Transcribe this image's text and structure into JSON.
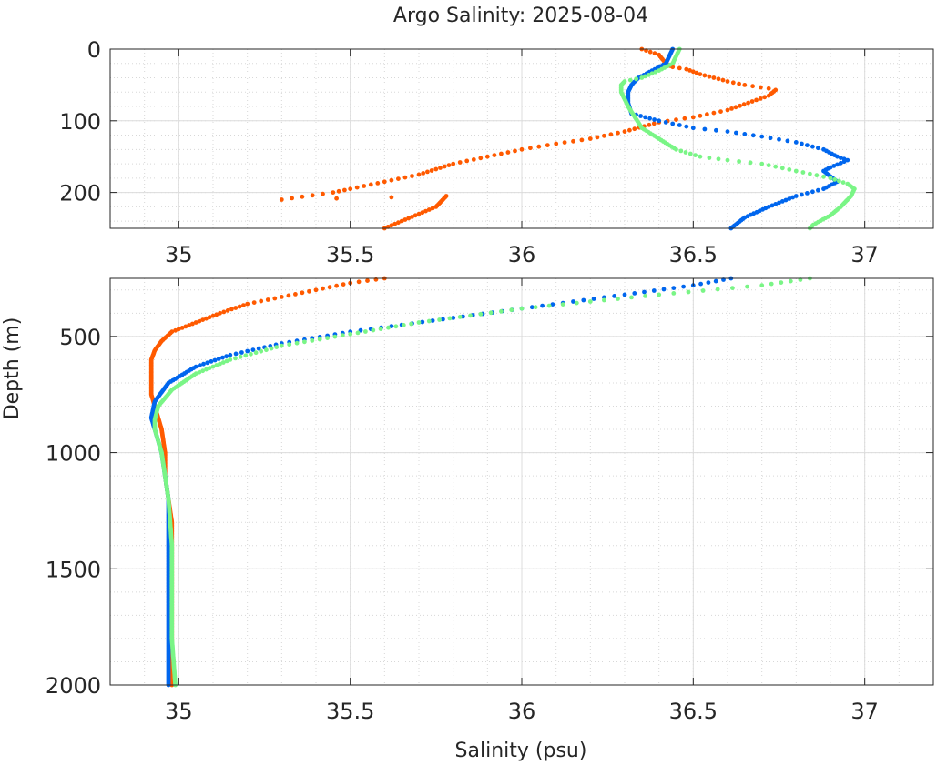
{
  "chart_data": {
    "type": "scatter",
    "title": "Argo Salinity: 2025-08-04",
    "xlabel": "Salinity (psu)",
    "ylabel": "Depth (m)",
    "panels": [
      {
        "name": "upper",
        "xlim": [
          34.8,
          37.2
        ],
        "ylim": [
          250,
          0
        ],
        "xticks": [
          35,
          35.5,
          36,
          36.5,
          37
        ],
        "xtick_labels": [
          "35",
          "35.5",
          "36",
          "36.5",
          "37"
        ],
        "yticks": [
          0,
          100,
          200
        ],
        "ytick_labels": [
          "0",
          "100",
          "200"
        ],
        "grid": true
      },
      {
        "name": "lower",
        "xlim": [
          34.8,
          37.2
        ],
        "ylim": [
          2000,
          250
        ],
        "xticks": [
          35,
          35.5,
          36,
          36.5,
          37
        ],
        "xtick_labels": [
          "35",
          "35.5",
          "36",
          "36.5",
          "37"
        ],
        "yticks": [
          500,
          1000,
          1500,
          2000
        ],
        "ytick_labels": [
          "500",
          "1000",
          "1500",
          "2000"
        ],
        "grid": true
      }
    ],
    "series": [
      {
        "name": "profile-orange",
        "color": "#ff5a00",
        "points": [
          [
            36.35,
            0
          ],
          [
            36.4,
            8
          ],
          [
            36.42,
            20
          ],
          [
            36.44,
            25
          ],
          [
            36.48,
            28
          ],
          [
            36.52,
            35
          ],
          [
            36.56,
            40
          ],
          [
            36.6,
            45
          ],
          [
            36.65,
            50
          ],
          [
            36.72,
            55
          ],
          [
            36.74,
            57
          ],
          [
            36.72,
            65
          ],
          [
            36.66,
            75
          ],
          [
            36.6,
            85
          ],
          [
            36.5,
            95
          ],
          [
            36.4,
            102
          ],
          [
            36.3,
            115
          ],
          [
            36.2,
            125
          ],
          [
            36.1,
            132
          ],
          [
            36.0,
            140
          ],
          [
            35.9,
            150
          ],
          [
            35.8,
            160
          ],
          [
            35.7,
            175
          ],
          [
            35.6,
            185
          ],
          [
            35.5,
            195
          ],
          [
            35.45,
            200
          ],
          [
            35.3,
            210
          ],
          [
            35.78,
            205
          ],
          [
            35.75,
            220
          ],
          [
            35.7,
            230
          ],
          [
            35.65,
            240
          ],
          [
            35.6,
            250
          ],
          [
            35.5,
            270
          ],
          [
            35.4,
            300
          ],
          [
            35.3,
            330
          ],
          [
            35.2,
            360
          ],
          [
            35.12,
            400
          ],
          [
            35.05,
            440
          ],
          [
            34.98,
            480
          ],
          [
            34.95,
            520
          ],
          [
            34.93,
            560
          ],
          [
            34.92,
            600
          ],
          [
            34.92,
            650
          ],
          [
            34.92,
            700
          ],
          [
            34.92,
            750
          ],
          [
            34.93,
            800
          ],
          [
            34.94,
            850
          ],
          [
            34.95,
            900
          ],
          [
            34.96,
            1000
          ],
          [
            34.96,
            1100
          ],
          [
            34.97,
            1200
          ],
          [
            34.98,
            1300
          ],
          [
            34.98,
            1400
          ],
          [
            34.98,
            1500
          ],
          [
            34.98,
            1600
          ],
          [
            34.98,
            1700
          ],
          [
            34.98,
            1800
          ],
          [
            34.98,
            1900
          ],
          [
            34.98,
            2000
          ]
        ]
      },
      {
        "name": "profile-blue",
        "color": "#0066ee",
        "points": [
          [
            36.44,
            0
          ],
          [
            36.43,
            10
          ],
          [
            36.42,
            20
          ],
          [
            36.38,
            30
          ],
          [
            36.34,
            40
          ],
          [
            36.32,
            50
          ],
          [
            36.31,
            60
          ],
          [
            36.31,
            75
          ],
          [
            36.32,
            90
          ],
          [
            36.36,
            95
          ],
          [
            36.4,
            100
          ],
          [
            36.5,
            110
          ],
          [
            36.6,
            115
          ],
          [
            36.7,
            122
          ],
          [
            36.8,
            130
          ],
          [
            36.88,
            140
          ],
          [
            36.92,
            150
          ],
          [
            36.95,
            155
          ],
          [
            36.9,
            165
          ],
          [
            36.88,
            170
          ],
          [
            36.92,
            185
          ],
          [
            36.88,
            195
          ],
          [
            36.8,
            205
          ],
          [
            36.72,
            220
          ],
          [
            36.65,
            235
          ],
          [
            36.61,
            250
          ],
          [
            36.5,
            280
          ],
          [
            36.3,
            320
          ],
          [
            36.0,
            380
          ],
          [
            35.8,
            420
          ],
          [
            35.5,
            480
          ],
          [
            35.3,
            530
          ],
          [
            35.15,
            580
          ],
          [
            35.05,
            630
          ],
          [
            34.97,
            700
          ],
          [
            34.93,
            780
          ],
          [
            34.92,
            850
          ],
          [
            34.93,
            900
          ],
          [
            34.95,
            1000
          ],
          [
            34.96,
            1100
          ],
          [
            34.97,
            1200
          ],
          [
            34.97,
            1400
          ],
          [
            34.97,
            1600
          ],
          [
            34.97,
            1800
          ],
          [
            34.97,
            2000
          ]
        ]
      },
      {
        "name": "profile-green",
        "color": "#7af586",
        "points": [
          [
            36.46,
            0
          ],
          [
            36.45,
            10
          ],
          [
            36.44,
            20
          ],
          [
            36.4,
            30
          ],
          [
            36.35,
            40
          ],
          [
            36.3,
            45
          ],
          [
            36.29,
            50
          ],
          [
            36.29,
            60
          ],
          [
            36.3,
            70
          ],
          [
            36.31,
            80
          ],
          [
            36.33,
            95
          ],
          [
            36.35,
            110
          ],
          [
            36.4,
            125
          ],
          [
            36.45,
            140
          ],
          [
            36.52,
            150
          ],
          [
            36.6,
            155
          ],
          [
            36.7,
            160
          ],
          [
            36.8,
            170
          ],
          [
            36.9,
            180
          ],
          [
            36.95,
            188
          ],
          [
            36.97,
            195
          ],
          [
            36.96,
            205
          ],
          [
            36.93,
            220
          ],
          [
            36.9,
            232
          ],
          [
            36.85,
            245
          ],
          [
            36.84,
            250
          ],
          [
            36.7,
            280
          ],
          [
            36.4,
            320
          ],
          [
            36.0,
            380
          ],
          [
            35.7,
            440
          ],
          [
            35.5,
            490
          ],
          [
            35.3,
            540
          ],
          [
            35.15,
            600
          ],
          [
            35.05,
            660
          ],
          [
            34.98,
            730
          ],
          [
            34.94,
            800
          ],
          [
            34.93,
            860
          ],
          [
            34.93,
            900
          ],
          [
            34.95,
            1000
          ],
          [
            34.96,
            1100
          ],
          [
            34.97,
            1200
          ],
          [
            34.98,
            1400
          ],
          [
            34.98,
            1600
          ],
          [
            34.98,
            1800
          ],
          [
            34.99,
            2000
          ]
        ]
      }
    ]
  }
}
